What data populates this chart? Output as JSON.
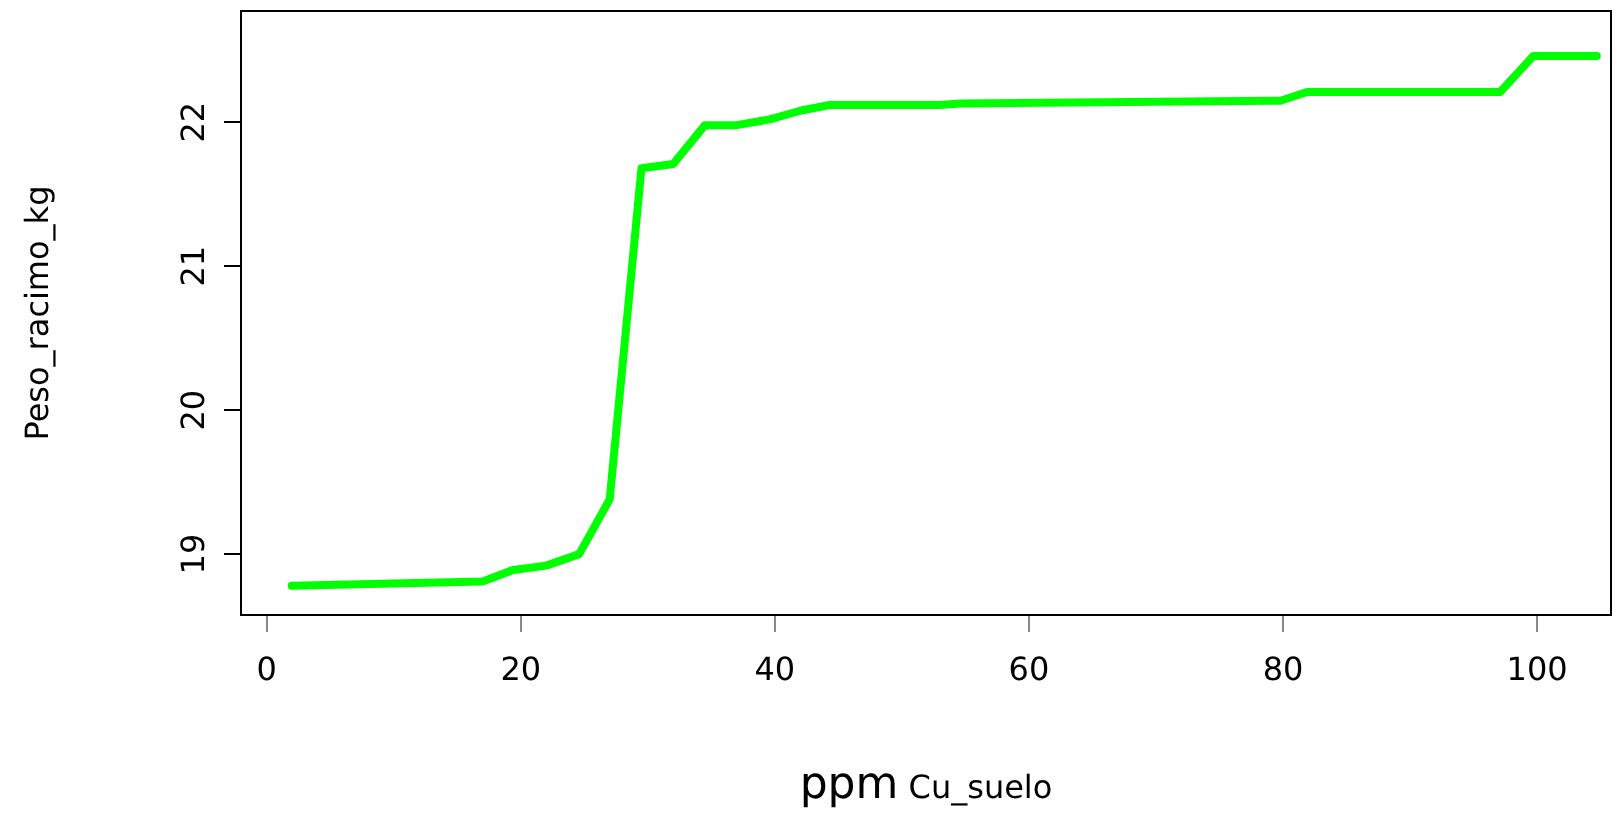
{
  "chart_data": {
    "type": "line",
    "xlabel": "ppm Cu_suelo",
    "ylabel": "Peso_racimo_kg",
    "x": [
      1.97,
      17.0,
      19.4,
      22.0,
      24.6,
      27.0,
      29.5,
      32.0,
      34.5,
      37.0,
      39.6,
      42.0,
      44.3,
      53.0,
      54.6,
      79.8,
      81.9,
      97.1,
      99.7,
      104.7
    ],
    "series": [
      {
        "color": "#00ff00",
        "values": [
          18.78,
          18.81,
          18.89,
          18.92,
          19.0,
          19.38,
          21.68,
          21.71,
          21.98,
          21.98,
          22.02,
          22.08,
          22.12,
          22.12,
          22.13,
          22.15,
          22.21,
          22.21,
          22.46,
          22.46
        ]
      }
    ],
    "xlim": [
      -2.1,
      105.9
    ],
    "ylim": [
      18.57,
      22.78
    ],
    "xticks": [
      0,
      20,
      40,
      60,
      80,
      100
    ],
    "yticks": [
      19,
      20,
      21,
      22
    ],
    "grid": false,
    "legend": false,
    "marker": "none",
    "line_style": "solid"
  }
}
